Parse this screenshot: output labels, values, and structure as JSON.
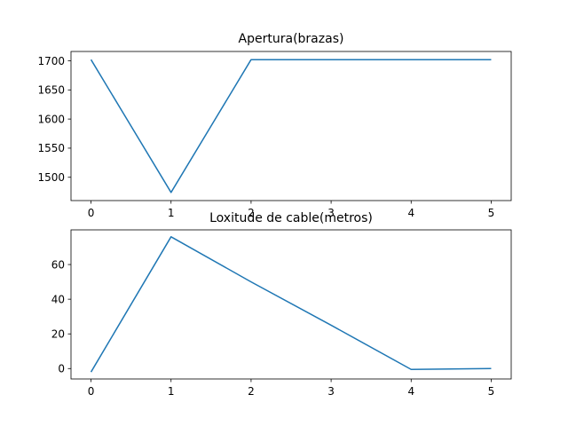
{
  "chart_data": [
    {
      "type": "line",
      "title": "Apertura(brazas)",
      "x": [
        0,
        1,
        2,
        3,
        4,
        5
      ],
      "series": [
        {
          "values": [
            1702,
            1474,
            1702,
            1702,
            1702,
            1702
          ]
        }
      ],
      "xlim": [
        -0.25,
        5.25
      ],
      "ylim": [
        1460,
        1716
      ],
      "xticks": [
        0,
        1,
        2,
        3,
        4,
        5
      ],
      "yticks": [
        1500,
        1550,
        1600,
        1650,
        1700
      ],
      "grid": false,
      "color": "#1f77b4"
    },
    {
      "type": "line",
      "title": "Loxitude de cable(metros)",
      "x": [
        0,
        1,
        2,
        3,
        4,
        5
      ],
      "series": [
        {
          "values": [
            -2,
            76,
            50,
            25,
            -0.5,
            0
          ]
        }
      ],
      "xlim": [
        -0.25,
        5.25
      ],
      "ylim": [
        -6,
        80
      ],
      "xticks": [
        0,
        1,
        2,
        3,
        4,
        5
      ],
      "yticks": [
        0,
        20,
        40,
        60
      ],
      "grid": false,
      "color": "#1f77b4"
    }
  ]
}
